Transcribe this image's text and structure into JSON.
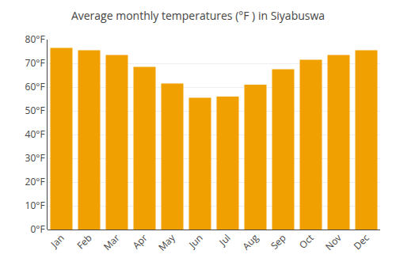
{
  "chart_data": {
    "type": "bar",
    "title": "Average monthly temperatures (°F ) in Siyabuswa",
    "categories": [
      "Jan",
      "Feb",
      "Mar",
      "Apr",
      "May",
      "Jun",
      "Jul",
      "Aug",
      "Sep",
      "Oct",
      "Nov",
      "Dec"
    ],
    "values": [
      76.5,
      75.5,
      73.5,
      68.5,
      61.5,
      55.5,
      56.0,
      61.0,
      67.5,
      71.5,
      73.5,
      75.5
    ],
    "color": "#F0A000",
    "ylim": [
      0,
      80
    ],
    "yticks": [
      {
        "value": 0,
        "label": "0°F"
      },
      {
        "value": 10,
        "label": "10°F"
      },
      {
        "value": 20,
        "label": "20°F"
      },
      {
        "value": 30,
        "label": "30°F"
      },
      {
        "value": 40,
        "label": "40°F"
      },
      {
        "value": 50,
        "label": "50°F"
      },
      {
        "value": 60,
        "label": "60°F"
      },
      {
        "value": 70,
        "label": "70°F"
      },
      {
        "value": 80,
        "label": "80°F"
      }
    ],
    "grid": true
  }
}
